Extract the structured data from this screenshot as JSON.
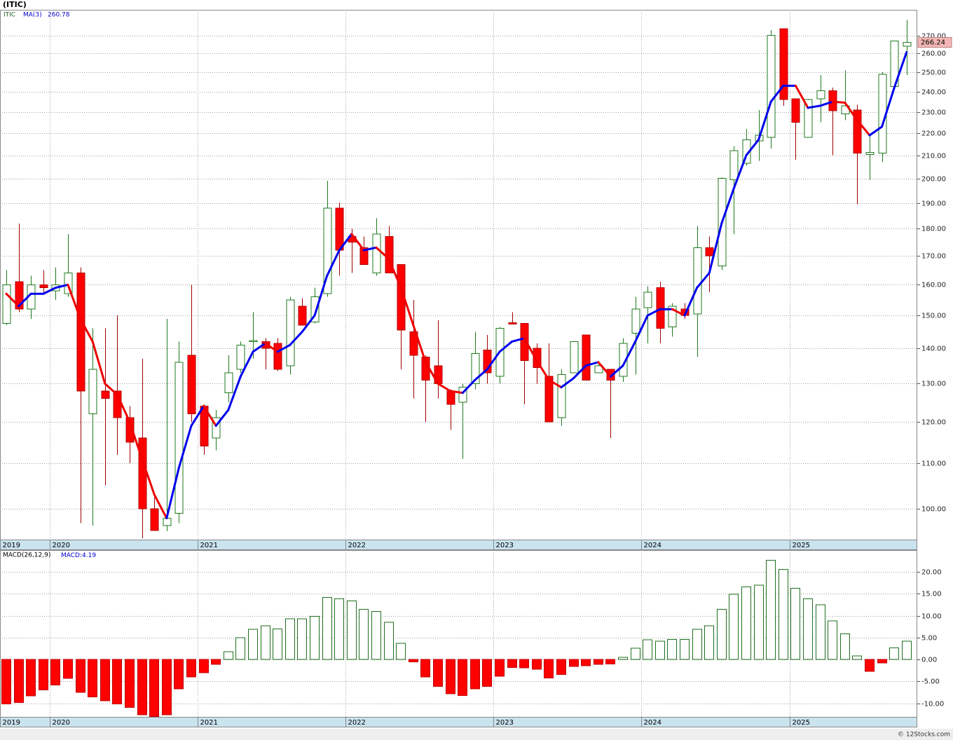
{
  "chart_data": [
    {
      "type": "candlestick",
      "title": "(ITIC)",
      "log_scale": true,
      "grid": true,
      "categories": [
        "2019",
        null,
        null,
        null,
        "2020",
        null,
        null,
        null,
        null,
        null,
        null,
        null,
        null,
        null,
        null,
        null,
        "2021",
        null,
        null,
        null,
        null,
        null,
        null,
        null,
        null,
        null,
        null,
        null,
        "2022",
        null,
        null,
        null,
        null,
        null,
        null,
        null,
        null,
        null,
        null,
        null,
        "2023",
        null,
        null,
        null,
        null,
        null,
        null,
        null,
        null,
        null,
        null,
        null,
        "2024",
        null,
        null,
        null,
        null,
        null,
        null,
        null,
        null,
        null,
        null,
        null,
        "2025",
        null,
        null,
        null,
        null,
        null,
        null,
        null,
        null,
        null
      ],
      "series": [
        {
          "name": "ITIC",
          "up_color": "#1f7a1f",
          "down_color": "#ff0000",
          "open": [
            147.5,
            161,
            152,
            160,
            158,
            157,
            164,
            122,
            128,
            128,
            121,
            116,
            100,
            96.5,
            99,
            138,
            124,
            116,
            127.5,
            134,
            142,
            142,
            141.5,
            135,
            153,
            148,
            157,
            188,
            177,
            173,
            164,
            177,
            167,
            145,
            137.5,
            135,
            128,
            125,
            130,
            139.5,
            132,
            147.7,
            147.5,
            140,
            132,
            121,
            133,
            144,
            133,
            134,
            132,
            144.5,
            152.5,
            159,
            146.5,
            152,
            150.5,
            173,
            166.5,
            199.5,
            206.5,
            216.5,
            218,
            274,
            236.5,
            218,
            236.5,
            240.5,
            229,
            231,
            210.3,
            211,
            242.5,
            264
          ],
          "high": [
            165,
            182,
            163,
            165,
            166,
            178,
            166,
            146,
            146,
            150,
            124,
            137,
            103,
            149,
            142,
            160,
            124.5,
            123,
            138,
            142,
            151,
            143,
            143,
            156,
            155.5,
            159,
            199,
            190,
            180,
            177,
            184,
            181,
            167,
            155,
            138,
            148.5,
            128.5,
            130,
            145,
            144,
            146.5,
            151,
            147.5,
            141.5,
            141.5,
            134,
            142,
            144,
            136,
            134,
            143,
            156,
            159.5,
            161,
            154,
            154,
            181,
            177,
            200.5,
            214,
            222,
            231,
            273,
            274,
            236.5,
            236.5,
            248.5,
            242,
            251,
            233.5,
            218.5,
            250,
            267,
            279
          ],
          "low": [
            147,
            151,
            149,
            157,
            155,
            156,
            97,
            96.5,
            105,
            112,
            110,
            94,
            95.5,
            95.4,
            97,
            120,
            112,
            113,
            125,
            133,
            137,
            134,
            133.5,
            132.5,
            147,
            147.5,
            156,
            163,
            164,
            167,
            163,
            164,
            134,
            126,
            120,
            126,
            118,
            111,
            128.5,
            130,
            130,
            147.3,
            124.5,
            130,
            120,
            119,
            133,
            131,
            133,
            116,
            130.5,
            132.5,
            141.5,
            141.5,
            143.5,
            149,
            137.5,
            157.5,
            165,
            178,
            205.5,
            207.5,
            213,
            233,
            208,
            218,
            225,
            210,
            226,
            189.5,
            199.5,
            207,
            242,
            248.5
          ],
          "close": [
            160,
            152,
            160,
            159,
            160,
            164,
            128,
            134,
            126,
            121,
            115,
            100,
            95.5,
            98,
            136,
            122,
            114,
            121,
            133,
            141,
            142.3,
            140,
            134,
            155,
            147,
            156,
            188,
            172,
            175,
            167,
            178,
            164,
            145.5,
            138,
            131,
            130,
            124.5,
            129,
            138.5,
            133,
            146,
            147.3,
            136.5,
            134.5,
            120,
            132.5,
            142,
            131,
            135,
            131,
            141.5,
            152,
            157.5,
            146,
            153,
            150,
            173,
            170,
            200,
            212,
            217,
            219,
            270,
            236,
            225,
            236,
            240.5,
            230.5,
            233,
            211,
            211.3,
            249,
            267,
            266.24
          ]
        },
        {
          "name": "MA(3)",
          "up_color": "#0000ee",
          "down_color": "#ee0000",
          "values": [
            157,
            153,
            157,
            157,
            159,
            160,
            149,
            142,
            130,
            127,
            120,
            111,
            103,
            98,
            109,
            119,
            124,
            119,
            123,
            132,
            139,
            141.5,
            139,
            141,
            145,
            150,
            163,
            172,
            178,
            172,
            173,
            169,
            159,
            147,
            136,
            130,
            128,
            127.5,
            131,
            134,
            139,
            142,
            143,
            136.5,
            131,
            129,
            131.5,
            135,
            136,
            132,
            135,
            142,
            150,
            152,
            152,
            150,
            159,
            164,
            182,
            196,
            210,
            217,
            235,
            243,
            243,
            232,
            233,
            235,
            234.5,
            226,
            219,
            223,
            242,
            260.78
          ]
        }
      ],
      "ylim": [
        93.7,
        285
      ],
      "yticks": [
        {
          "value": 100,
          "label": "100.00"
        },
        {
          "value": 110,
          "label": "110.00"
        },
        {
          "value": 120,
          "label": "120.00"
        },
        {
          "value": 130,
          "label": "130.00"
        },
        {
          "value": 140,
          "label": "140.00"
        },
        {
          "value": 150,
          "label": "150.00"
        },
        {
          "value": 160,
          "label": "160.00"
        },
        {
          "value": 170,
          "label": "170.00"
        },
        {
          "value": 180,
          "label": "180.00"
        },
        {
          "value": 190,
          "label": "190.00"
        },
        {
          "value": 200,
          "label": "200.00"
        },
        {
          "value": 210,
          "label": "210.00"
        },
        {
          "value": 220,
          "label": "220.00"
        },
        {
          "value": 230,
          "label": "230.00"
        },
        {
          "value": 240,
          "label": "240.00"
        },
        {
          "value": 250,
          "label": "250.00"
        },
        {
          "value": 260,
          "label": "260.00"
        },
        {
          "value": 270,
          "label": "270.00"
        }
      ]
    },
    {
      "type": "bar",
      "title": "MACD(26,12,9)",
      "readout_label": "MACD:",
      "grid": true,
      "up_color": "#1f6e1f",
      "down_color": "#ff0000",
      "categories": [
        "2019",
        null,
        null,
        null,
        "2020",
        null,
        null,
        null,
        null,
        null,
        null,
        null,
        null,
        null,
        null,
        null,
        "2021",
        null,
        null,
        null,
        null,
        null,
        null,
        null,
        null,
        null,
        null,
        null,
        "2022",
        null,
        null,
        null,
        null,
        null,
        null,
        null,
        null,
        null,
        null,
        null,
        "2023",
        null,
        null,
        null,
        null,
        null,
        null,
        null,
        null,
        null,
        null,
        null,
        "2024",
        null,
        null,
        null,
        null,
        null,
        null,
        null,
        null,
        null,
        null,
        null,
        "2025",
        null,
        null,
        null,
        null,
        null,
        null,
        null,
        null,
        null
      ],
      "values": [
        -10.1,
        -9.8,
        -8.3,
        -6.9,
        -5.8,
        -4.3,
        -7.5,
        -8.5,
        -9.4,
        -10.1,
        -10.9,
        -12.6,
        -13,
        -12.6,
        -6.7,
        -4,
        -3,
        -1.1,
        1.8,
        5,
        6.9,
        7.7,
        7,
        9.3,
        9.3,
        9.9,
        14.2,
        13.9,
        13.4,
        11.5,
        11,
        8.5,
        3.7,
        -0.5,
        -4,
        -6.1,
        -7.8,
        -8.2,
        -6.7,
        -6.1,
        -3.8,
        -1.8,
        -1.9,
        -2.2,
        -4.2,
        -3.4,
        -1.6,
        -1.4,
        -1.1,
        -1,
        0.5,
        2.6,
        4.5,
        4.2,
        4.6,
        4.6,
        6.9,
        7.7,
        11.5,
        14.9,
        16.6,
        17,
        22.7,
        20.6,
        16.3,
        13.9,
        12.5,
        8.8,
        5.9,
        0.8,
        -2.7,
        -0.8,
        2.7,
        4.19
      ],
      "ylim": [
        -13.1,
        25
      ],
      "yticks": [
        {
          "value": -10,
          "label": "-10.00"
        },
        {
          "value": -5,
          "label": "-5.00"
        },
        {
          "value": 0,
          "label": "0.00"
        },
        {
          "value": 5,
          "label": "5.00"
        },
        {
          "value": 10,
          "label": "10.00"
        },
        {
          "value": 15,
          "label": "15.00"
        },
        {
          "value": 20,
          "label": "20.00"
        }
      ]
    }
  ],
  "footer": "© 12Stocks.com"
}
